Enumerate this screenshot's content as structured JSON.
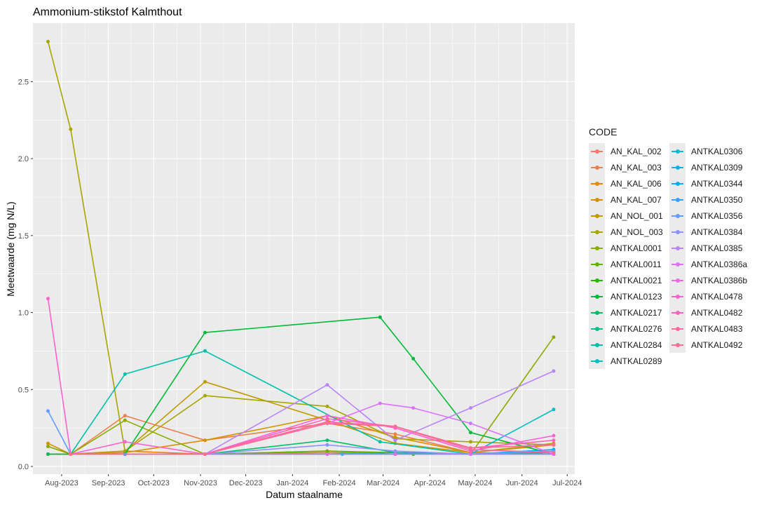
{
  "chart_data": {
    "type": "line",
    "title": "Ammonium-stikstof Kalmthout",
    "xlabel": "Datum staalname",
    "ylabel": "Meetwaarde (mg N/L)",
    "ylim": [
      -0.05,
      2.88
    ],
    "xlim": [
      "2023-07-13",
      "2024-07-06"
    ],
    "y_ticks": [
      0.0,
      0.5,
      1.0,
      1.5,
      2.0,
      2.5
    ],
    "y_tick_labels": [
      "0.0",
      "0.5",
      "1.0",
      "1.5",
      "2.0",
      "2.5"
    ],
    "x_ticks": [
      "2023-08-01",
      "2023-09-01",
      "2023-10-01",
      "2023-11-01",
      "2023-12-01",
      "2024-01-01",
      "2024-02-01",
      "2024-03-01",
      "2024-04-01",
      "2024-05-01",
      "2024-06-01",
      "2024-07-01"
    ],
    "x_tick_labels": [
      "Aug-2023",
      "Sep-2023",
      "Oct-2023",
      "Nov-2023",
      "Dec-2023",
      "Jan-2024",
      "Feb-2024",
      "Mar-2024",
      "Apr-2024",
      "May-2024",
      "Jun-2024",
      "Jul-2024"
    ],
    "grid": true,
    "legend": {
      "title": "CODE",
      "position": "right"
    },
    "series": [
      {
        "name": "AN_KAL_002",
        "color": "#F8766D",
        "points": [
          [
            "2023-07-23",
            0.08
          ],
          [
            "2023-08-07",
            0.08
          ],
          [
            "2023-09-12",
            0.08
          ],
          [
            "2023-11-04",
            0.08
          ],
          [
            "2024-01-24",
            0.08
          ],
          [
            "2024-03-09",
            0.08
          ],
          [
            "2024-04-28",
            0.08
          ],
          [
            "2024-06-22",
            0.08
          ]
        ]
      },
      {
        "name": "AN_KAL_003",
        "color": "#EE7E4B",
        "points": [
          [
            "2023-07-23",
            0.08
          ],
          [
            "2023-08-07",
            0.08
          ],
          [
            "2023-09-12",
            0.33
          ],
          [
            "2023-11-04",
            0.17
          ],
          [
            "2024-01-24",
            0.28
          ],
          [
            "2024-03-09",
            0.21
          ],
          [
            "2024-04-28",
            0.09
          ],
          [
            "2024-06-22",
            0.08
          ]
        ]
      },
      {
        "name": "AN_KAL_006",
        "color": "#E58700",
        "points": [
          [
            "2023-07-23",
            0.08
          ],
          [
            "2023-08-07",
            0.08
          ],
          [
            "2023-09-12",
            0.1
          ],
          [
            "2023-11-04",
            0.08
          ],
          [
            "2024-01-24",
            0.09
          ],
          [
            "2024-03-09",
            0.08
          ],
          [
            "2024-04-28",
            0.08
          ],
          [
            "2024-06-22",
            0.08
          ]
        ]
      },
      {
        "name": "AN_KAL_007",
        "color": "#D49200",
        "points": [
          [
            "2023-07-23",
            0.15
          ],
          [
            "2023-08-07",
            0.08
          ],
          [
            "2023-09-12",
            0.09
          ],
          [
            "2023-11-04",
            0.17
          ],
          [
            "2024-01-24",
            0.33
          ],
          [
            "2024-03-09",
            0.19
          ],
          [
            "2024-04-28",
            0.09
          ],
          [
            "2024-06-22",
            0.14
          ]
        ]
      },
      {
        "name": "AN_NOL_001",
        "color": "#C09B00",
        "points": [
          [
            "2023-07-23",
            0.13
          ],
          [
            "2023-08-07",
            0.08
          ],
          [
            "2023-09-12",
            0.1
          ],
          [
            "2023-11-04",
            0.55
          ],
          [
            "2024-01-24",
            0.3
          ],
          [
            "2024-03-09",
            0.15
          ],
          [
            "2024-04-28",
            0.09
          ],
          [
            "2024-06-22",
            0.15
          ]
        ]
      },
      {
        "name": "AN_NOL_003",
        "color": "#A8A400",
        "points": [
          [
            "2023-07-23",
            2.76
          ],
          [
            "2023-08-07",
            2.19
          ],
          [
            "2023-09-12",
            0.1
          ],
          [
            "2023-11-04",
            0.46
          ],
          [
            "2024-01-24",
            0.39
          ],
          [
            "2024-03-09",
            0.18
          ],
          [
            "2024-04-28",
            0.16
          ],
          [
            "2024-06-22",
            0.14
          ]
        ]
      },
      {
        "name": "ANTKAL0001",
        "color": "#8BAB00",
        "points": [
          [
            "2023-07-23",
            0.13
          ],
          [
            "2023-08-07",
            0.08
          ],
          [
            "2023-09-12",
            0.3
          ],
          [
            "2023-11-04",
            0.08
          ],
          [
            "2024-01-24",
            0.1
          ],
          [
            "2024-03-09",
            0.08
          ],
          [
            "2024-04-28",
            0.08
          ],
          [
            "2024-06-22",
            0.84
          ]
        ]
      },
      {
        "name": "ANTKAL0011",
        "color": "#64B200",
        "points": [
          [
            "2023-07-23",
            0.08
          ],
          [
            "2023-08-07",
            0.08
          ],
          [
            "2023-09-12",
            0.08
          ],
          [
            "2023-11-04",
            0.08
          ],
          [
            "2024-01-24",
            0.1
          ],
          [
            "2024-03-09",
            0.09
          ],
          [
            "2024-04-28",
            0.08
          ],
          [
            "2024-06-22",
            0.08
          ]
        ]
      },
      {
        "name": "ANTKAL0021",
        "color": "#24B700",
        "points": [
          [
            "2023-07-23",
            0.08
          ],
          [
            "2023-08-07",
            0.08
          ],
          [
            "2023-09-12",
            0.08
          ],
          [
            "2023-11-04",
            0.08
          ],
          [
            "2024-01-24",
            0.08
          ],
          [
            "2024-03-21",
            0.08
          ],
          [
            "2024-04-28",
            0.08
          ],
          [
            "2024-06-22",
            0.08
          ]
        ]
      },
      {
        "name": "ANTKAL0123",
        "color": "#00BA38",
        "points": [
          [
            "2023-09-12",
            0.08
          ],
          [
            "2023-11-04",
            0.87
          ],
          [
            "2024-02-28",
            0.97
          ],
          [
            "2024-03-21",
            0.7
          ],
          [
            "2024-04-28",
            0.22
          ],
          [
            "2024-06-22",
            0.08
          ]
        ]
      },
      {
        "name": "ANTKAL0217",
        "color": "#00BE67",
        "points": [
          [
            "2023-07-23",
            0.08
          ],
          [
            "2023-08-07",
            0.08
          ],
          [
            "2023-09-12",
            0.08
          ],
          [
            "2023-11-04",
            0.08
          ],
          [
            "2024-01-24",
            0.17
          ],
          [
            "2024-03-09",
            0.09
          ],
          [
            "2024-04-28",
            0.08
          ],
          [
            "2024-06-22",
            0.09
          ]
        ]
      },
      {
        "name": "ANTKAL0276",
        "color": "#00C08B",
        "points": [
          [
            "2023-08-07",
            0.08
          ],
          [
            "2023-09-12",
            0.08
          ],
          [
            "2023-11-04",
            0.08
          ],
          [
            "2024-01-24",
            0.08
          ],
          [
            "2024-03-09",
            0.09
          ],
          [
            "2024-04-28",
            0.08
          ],
          [
            "2024-06-22",
            0.08
          ]
        ]
      },
      {
        "name": "ANTKAL0284",
        "color": "#00C1AA",
        "points": [
          [
            "2023-08-07",
            0.08
          ],
          [
            "2023-09-12",
            0.6
          ],
          [
            "2023-11-04",
            0.75
          ],
          [
            "2024-02-28",
            0.16
          ],
          [
            "2024-04-28",
            0.08
          ],
          [
            "2024-06-22",
            0.08
          ]
        ]
      },
      {
        "name": "ANTKAL0289",
        "color": "#00BFC4",
        "points": [
          [
            "2023-08-07",
            0.08
          ],
          [
            "2023-09-12",
            0.08
          ],
          [
            "2023-11-04",
            0.08
          ],
          [
            "2024-01-24",
            0.08
          ],
          [
            "2024-03-09",
            0.08
          ],
          [
            "2024-04-28",
            0.08
          ],
          [
            "2024-06-22",
            0.37
          ]
        ]
      },
      {
        "name": "ANTKAL0306",
        "color": "#00BBDA",
        "points": [
          [
            "2024-01-24",
            0.08
          ],
          [
            "2024-02-03",
            0.08
          ],
          [
            "2024-03-09",
            0.08
          ],
          [
            "2024-04-28",
            0.08
          ]
        ]
      },
      {
        "name": "ANTKAL0309",
        "color": "#00B4EF",
        "points": [
          [
            "2023-08-07",
            0.08
          ],
          [
            "2023-09-12",
            0.08
          ],
          [
            "2023-11-04",
            0.08
          ],
          [
            "2024-03-09",
            0.08
          ],
          [
            "2024-04-28",
            0.08
          ],
          [
            "2024-06-22",
            0.08
          ]
        ]
      },
      {
        "name": "ANTKAL0344",
        "color": "#00ACFC",
        "points": [
          [
            "2023-08-07",
            0.08
          ],
          [
            "2023-11-04",
            0.08
          ],
          [
            "2024-03-09",
            0.08
          ],
          [
            "2024-04-28",
            0.08
          ],
          [
            "2024-06-22",
            0.11
          ]
        ]
      },
      {
        "name": "ANTKAL0350",
        "color": "#35A2FF",
        "points": [
          [
            "2023-08-07",
            0.08
          ],
          [
            "2023-11-04",
            0.08
          ],
          [
            "2024-03-09",
            0.08
          ],
          [
            "2024-06-22",
            0.08
          ]
        ]
      },
      {
        "name": "ANTKAL0356",
        "color": "#619CFF",
        "points": [
          [
            "2023-07-23",
            0.36
          ],
          [
            "2023-08-07",
            0.08
          ],
          [
            "2023-11-04",
            0.08
          ],
          [
            "2024-04-28",
            0.08
          ],
          [
            "2024-06-22",
            0.1
          ]
        ]
      },
      {
        "name": "ANTKAL0384",
        "color": "#8B93FF",
        "points": [
          [
            "2023-08-07",
            0.08
          ],
          [
            "2023-11-04",
            0.08
          ],
          [
            "2024-01-24",
            0.14
          ],
          [
            "2024-03-09",
            0.1
          ],
          [
            "2024-04-28",
            0.08
          ],
          [
            "2024-06-22",
            0.08
          ]
        ]
      },
      {
        "name": "ANTKAL0385",
        "color": "#B983FF",
        "points": [
          [
            "2023-11-04",
            0.08
          ],
          [
            "2024-01-24",
            0.53
          ],
          [
            "2024-03-09",
            0.17
          ],
          [
            "2024-04-28",
            0.38
          ],
          [
            "2024-06-22",
            0.62
          ]
        ]
      },
      {
        "name": "ANTKAL0386a",
        "color": "#DB72FB",
        "points": [
          [
            "2023-11-04",
            0.08
          ],
          [
            "2024-01-24",
            0.28
          ],
          [
            "2024-02-28",
            0.41
          ],
          [
            "2024-03-21",
            0.38
          ],
          [
            "2024-04-28",
            0.28
          ],
          [
            "2024-06-22",
            0.08
          ]
        ]
      },
      {
        "name": "ANTKAL0386b",
        "color": "#F066EA",
        "points": [
          [
            "2023-08-07",
            0.08
          ],
          [
            "2023-11-04",
            0.08
          ],
          [
            "2024-01-24",
            0.08
          ],
          [
            "2024-03-09",
            0.08
          ],
          [
            "2024-04-28",
            0.08
          ],
          [
            "2024-06-22",
            0.08
          ]
        ]
      },
      {
        "name": "ANTKAL0478",
        "color": "#FD61D1",
        "points": [
          [
            "2023-07-23",
            1.09
          ],
          [
            "2023-08-07",
            0.08
          ],
          [
            "2023-09-12",
            0.16
          ],
          [
            "2023-11-04",
            0.08
          ],
          [
            "2024-01-24",
            0.33
          ],
          [
            "2024-03-09",
            0.25
          ],
          [
            "2024-04-28",
            0.1
          ],
          [
            "2024-06-22",
            0.2
          ]
        ]
      },
      {
        "name": "ANTKAL0482",
        "color": "#FF62BC",
        "points": [
          [
            "2023-08-07",
            0.08
          ],
          [
            "2023-11-04",
            0.08
          ],
          [
            "2024-01-24",
            0.31
          ],
          [
            "2024-03-09",
            0.26
          ],
          [
            "2024-04-28",
            0.12
          ],
          [
            "2024-06-22",
            0.17
          ]
        ]
      },
      {
        "name": "ANTKAL0483",
        "color": "#FF67A4",
        "points": [
          [
            "2023-08-07",
            0.08
          ],
          [
            "2023-11-04",
            0.08
          ],
          [
            "2024-01-24",
            0.29
          ],
          [
            "2024-03-09",
            0.26
          ],
          [
            "2024-04-28",
            0.11
          ],
          [
            "2024-06-22",
            0.09
          ]
        ]
      },
      {
        "name": "ANTKAL0492",
        "color": "#FF6C91",
        "points": [
          [
            "2023-08-07",
            0.08
          ],
          [
            "2023-11-04",
            0.08
          ],
          [
            "2024-01-24",
            0.28
          ],
          [
            "2024-03-09",
            0.26
          ],
          [
            "2024-04-28",
            0.12
          ],
          [
            "2024-06-22",
            0.14
          ]
        ]
      }
    ]
  }
}
